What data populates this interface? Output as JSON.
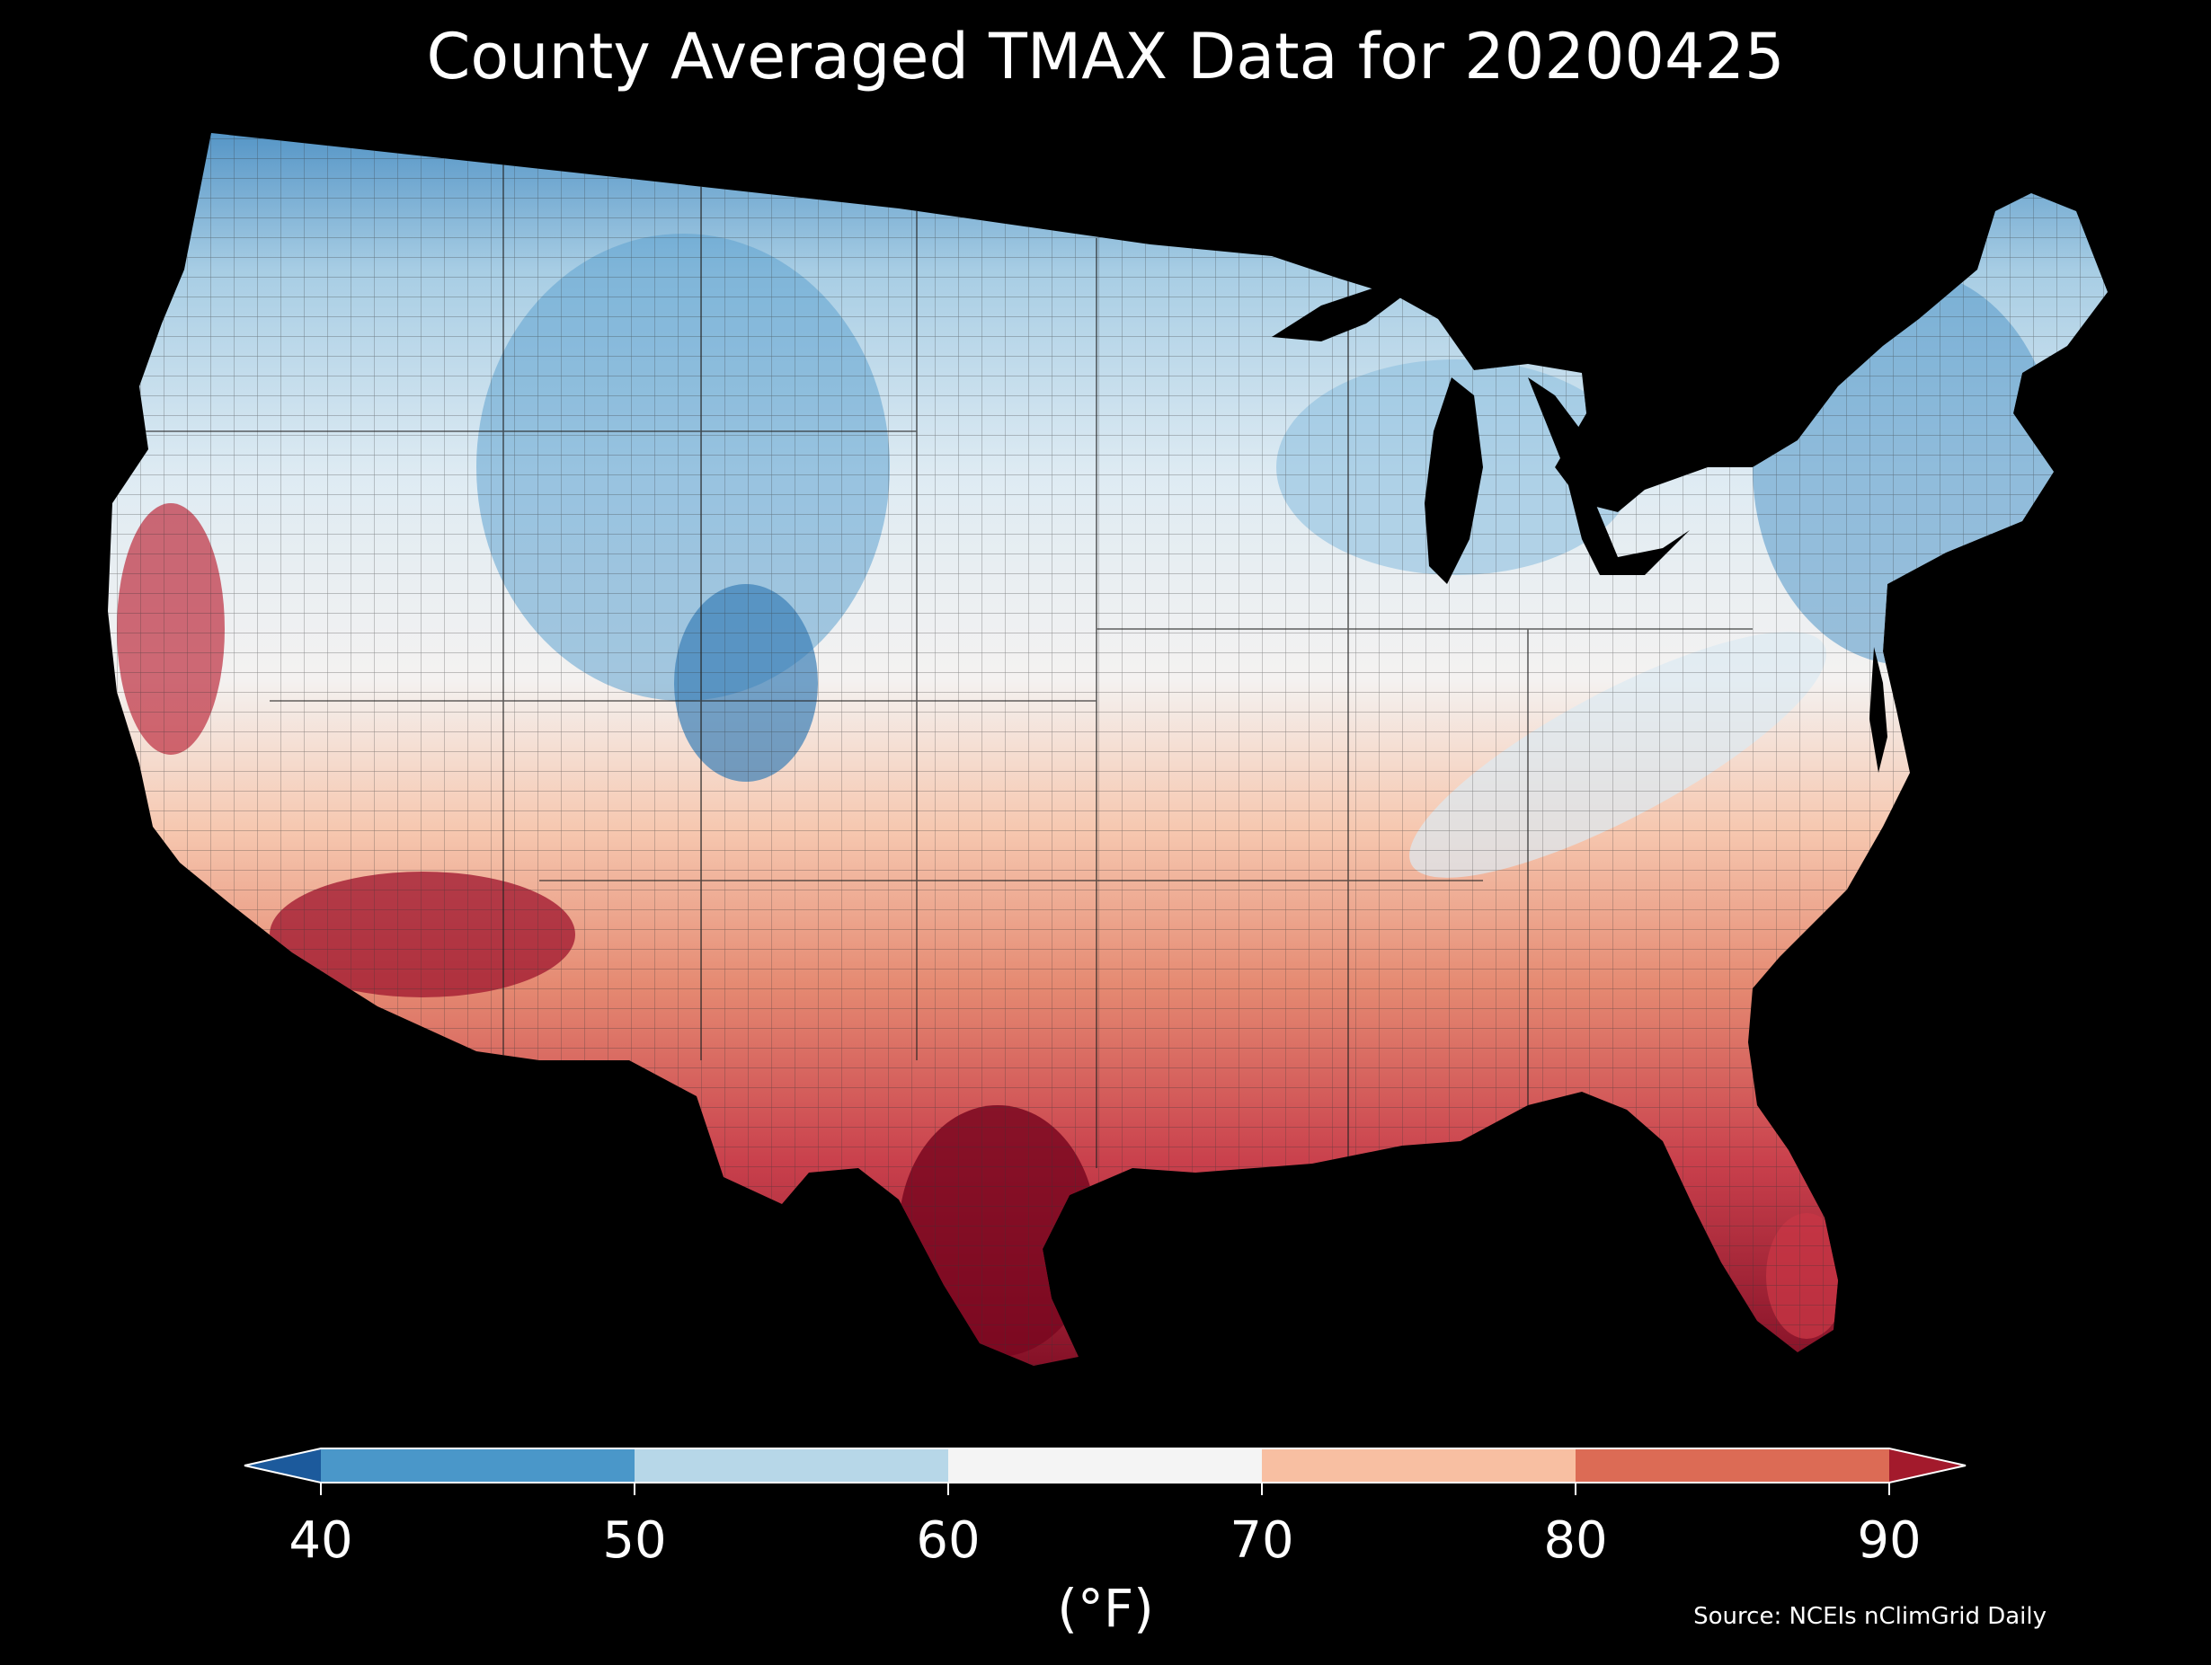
{
  "title": "County Averaged TMAX Data for 20200425",
  "colorbar": {
    "ticks": [
      "40",
      "50",
      "60",
      "70",
      "80",
      "90"
    ],
    "unit": "(°F)",
    "bins": [
      {
        "range": [
          40,
          50
        ],
        "color": "#4a97c9"
      },
      {
        "range": [
          50,
          60
        ],
        "color": "#b7d7e8"
      },
      {
        "range": [
          60,
          70
        ],
        "color": "#f4f4f4"
      },
      {
        "range": [
          70,
          80
        ],
        "color": "#f8bfa2"
      },
      {
        "range": [
          80,
          90
        ],
        "color": "#dc6b55"
      }
    ],
    "under_color": "#1c5a9c",
    "over_color": "#a31a2c",
    "extend": "both"
  },
  "source": "Source: NCEIs nClimGrid Daily",
  "map": {
    "region": "contiguous-us",
    "gradient_colors": [
      "#4c8fc3",
      "#a7cde4",
      "#deebf3",
      "#f4f2f1",
      "#f6c7af",
      "#e58a72",
      "#c9404c",
      "#7c0a22"
    ],
    "background_color": "#000000"
  }
}
